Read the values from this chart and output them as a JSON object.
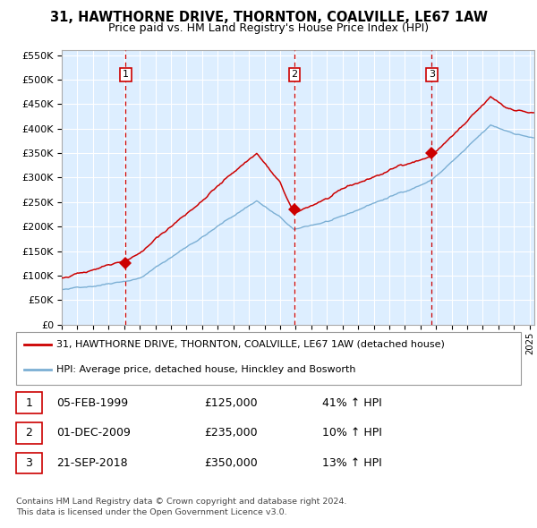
{
  "title1": "31, HAWTHORNE DRIVE, THORNTON, COALVILLE, LE67 1AW",
  "title2": "Price paid vs. HM Land Registry's House Price Index (HPI)",
  "legend1": "31, HAWTHORNE DRIVE, THORNTON, COALVILLE, LE67 1AW (detached house)",
  "legend2": "HPI: Average price, detached house, Hinckley and Bosworth",
  "transactions": [
    {
      "num": 1,
      "date": "05-FEB-1999",
      "price": 125000,
      "pct": "41%",
      "dir": "↑"
    },
    {
      "num": 2,
      "date": "01-DEC-2009",
      "price": 235000,
      "pct": "10%",
      "dir": "↑"
    },
    {
      "num": 3,
      "date": "21-SEP-2018",
      "price": 350000,
      "pct": "13%",
      "dir": "↑"
    }
  ],
  "footnote1": "Contains HM Land Registry data © Crown copyright and database right 2024.",
  "footnote2": "This data is licensed under the Open Government Licence v3.0.",
  "transaction_dates_decimal": [
    1999.09,
    2009.92,
    2018.72
  ],
  "t_prices": [
    125000,
    235000,
    350000
  ],
  "red_line_color": "#cc0000",
  "blue_line_color": "#7bafd4",
  "bg_color": "#ddeeff",
  "grid_color": "#ffffff",
  "dashed_color": "#cc0000",
  "ylim": [
    0,
    560000
  ],
  "xlim_start": 1995.0,
  "xlim_end": 2025.3
}
